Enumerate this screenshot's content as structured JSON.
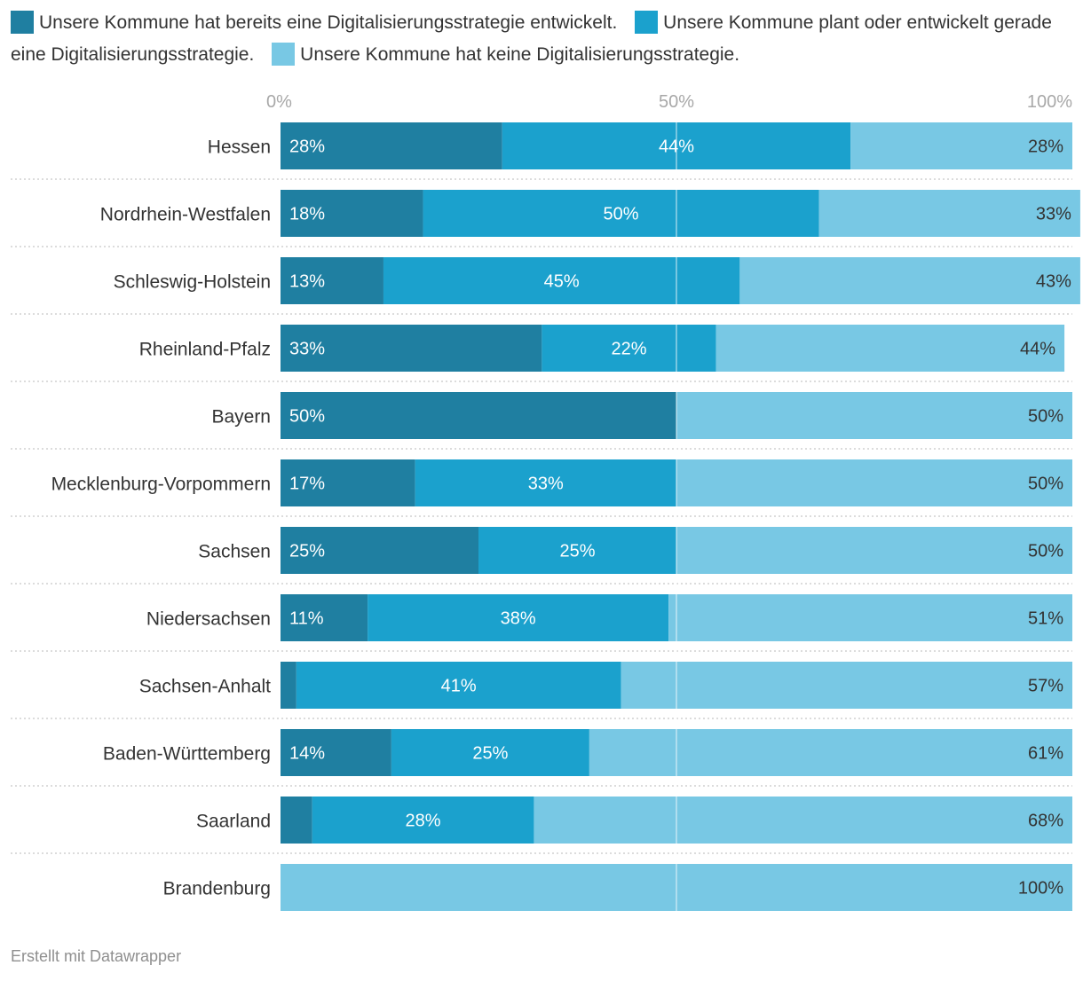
{
  "chart_data": {
    "type": "bar",
    "orientation": "horizontal",
    "stacked": true,
    "xlim": [
      0,
      100
    ],
    "ticks": [
      "0%",
      "50%",
      "100%"
    ],
    "categories": [
      "Hessen",
      "Nordrhein-Westfalen",
      "Schleswig-Holstein",
      "Rheinland-Pfalz",
      "Bayern",
      "Mecklenburg-Vorpommern",
      "Sachsen",
      "Niedersachsen",
      "Sachsen-Anhalt",
      "Baden-Württemberg",
      "Saarland",
      "Brandenburg"
    ],
    "series": [
      {
        "name": "Unsere Kommune hat bereits eine Digitalisierungsstrategie entwickelt.",
        "color": "#1f7fa1",
        "values": [
          28,
          18,
          13,
          33,
          50,
          17,
          25,
          11,
          2,
          14,
          4,
          0
        ]
      },
      {
        "name": "Unsere Kommune plant oder entwickelt gerade eine Digitalisierungsstrategie.",
        "color": "#1ba1cd",
        "values": [
          44,
          50,
          45,
          22,
          0,
          33,
          25,
          38,
          41,
          25,
          28,
          0
        ]
      },
      {
        "name": "Unsere Kommune hat keine Digitalisierungsstrategie.",
        "color": "#78c8e4",
        "values": [
          28,
          33,
          43,
          44,
          50,
          50,
          50,
          51,
          57,
          61,
          68,
          100
        ]
      }
    ],
    "labels": [
      [
        "28%",
        "18%",
        "13%",
        "33%",
        "50%",
        "17%",
        "25%",
        "11%",
        "",
        "14%",
        "",
        ""
      ],
      [
        "44%",
        "50%",
        "45%",
        "22%",
        "",
        "33%",
        "25%",
        "38%",
        "41%",
        "25%",
        "28%",
        ""
      ],
      [
        "28%",
        "33%",
        "43%",
        "44%",
        "50%",
        "50%",
        "50%",
        "51%",
        "57%",
        "61%",
        "68%",
        "100%"
      ]
    ]
  },
  "footer": "Erstellt mit Datawrapper"
}
